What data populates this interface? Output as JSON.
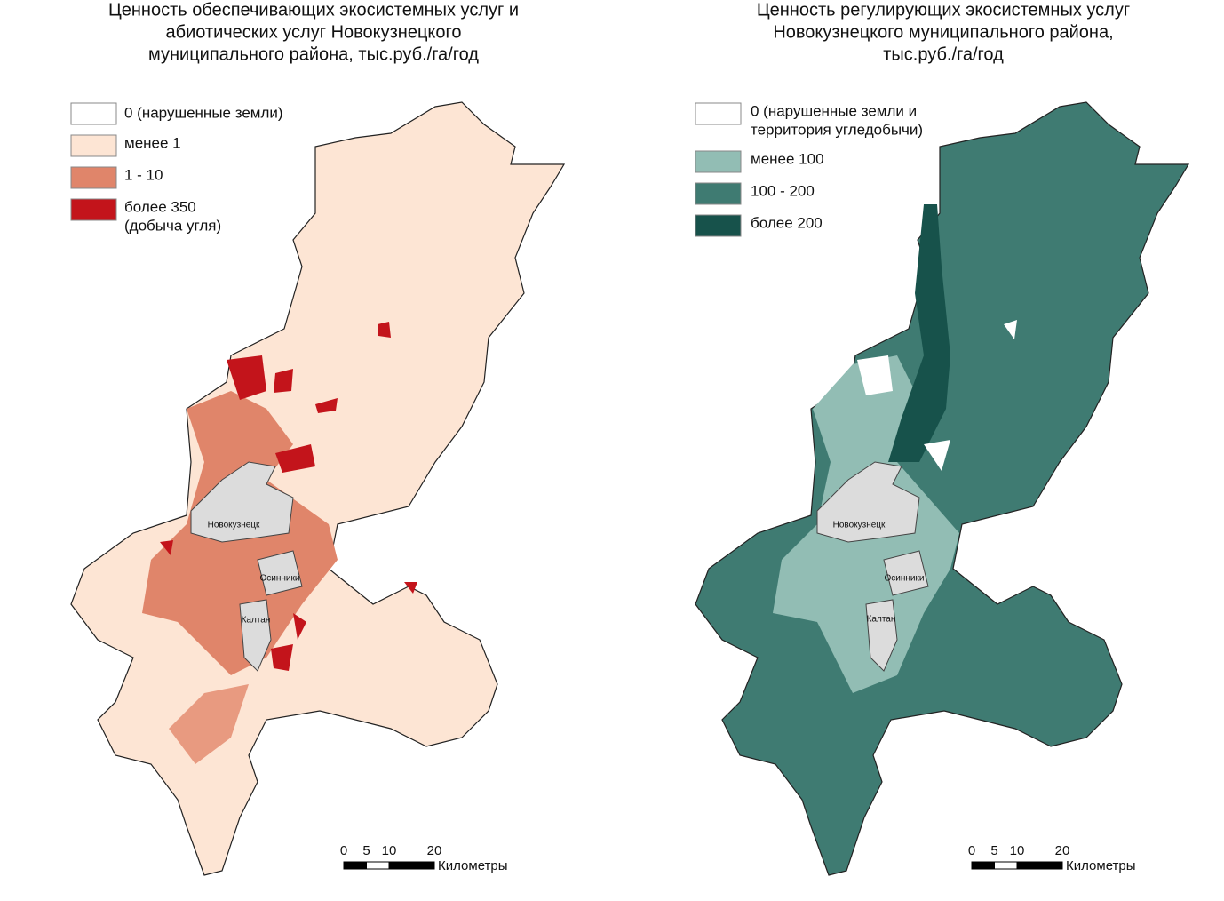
{
  "maps": [
    {
      "title": [
        "Ценность обеспечивающих экосистемных услуг и",
        "абиотических услуг Новокузнецкого",
        "муниципального района, тыс.руб./га/год"
      ],
      "legend": [
        {
          "label": [
            "0 (нарушенные земли)"
          ],
          "color": "#ffffff"
        },
        {
          "label": [
            "менее 1"
          ],
          "color": "#fde5d4"
        },
        {
          "label": [
            "1 - 10"
          ],
          "color": "#e0856a"
        },
        {
          "label": [
            "более 350",
            "(добыча угля)"
          ],
          "color": "#c3141b"
        }
      ],
      "cities": [
        "Новокузнецк",
        "Осинники",
        "Калтан"
      ],
      "scale": {
        "ticks": [
          0,
          5,
          10,
          20
        ],
        "unit": "Километры"
      }
    },
    {
      "title": [
        "Ценность регулирующих экосистемных услуг",
        "Новокузнецкого муниципального района,",
        "тыс.руб./га/год"
      ],
      "legend": [
        {
          "label": [
            "0 (нарушенные земли и",
            "территория угледобычи)"
          ],
          "color": "#ffffff"
        },
        {
          "label": [
            "менее 100"
          ],
          "color": "#92bdb4"
        },
        {
          "label": [
            "100 - 200"
          ],
          "color": "#3f7b72"
        },
        {
          "label": [
            "более 200"
          ],
          "color": "#17524b"
        }
      ],
      "cities": [
        "Новокузнецк",
        "Осинники",
        "Калтан"
      ],
      "scale": {
        "ticks": [
          0,
          5,
          10,
          20
        ],
        "unit": "Километры"
      }
    }
  ]
}
